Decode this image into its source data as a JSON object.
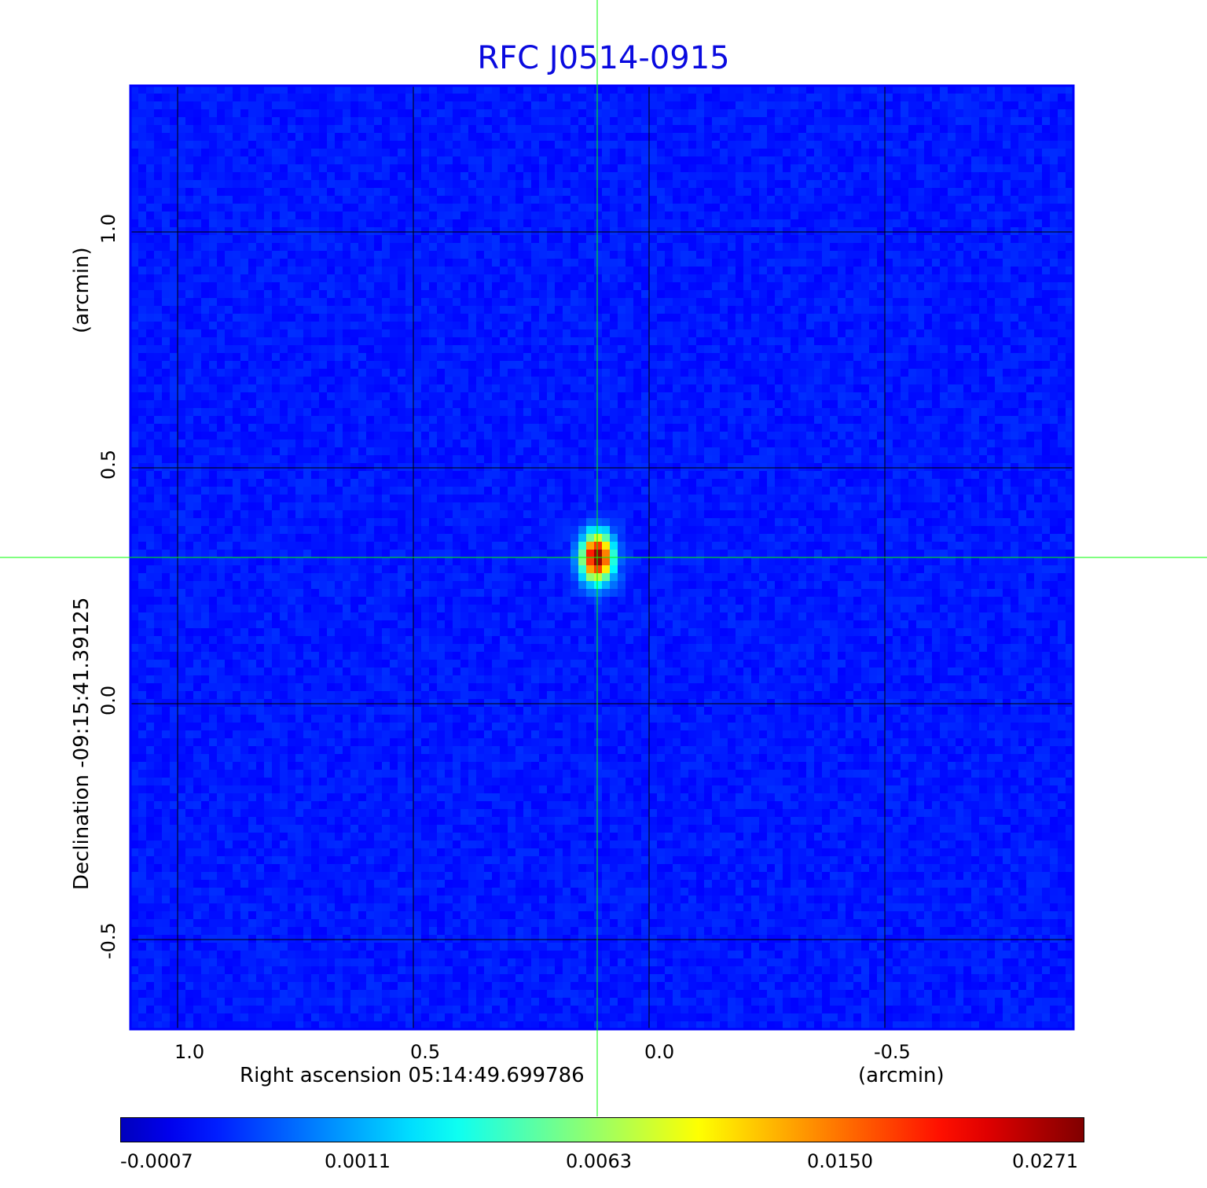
{
  "chart_data": {
    "type": "heatmap",
    "title": "RFC J0514-0915",
    "xlabel": "Right ascension  05:14:49.699786",
    "xunit": "(arcmin)",
    "ylabel": "Declination  -09:15:41.39125",
    "yunit": "(arcmin)",
    "xlim": [
      1.1,
      -0.9
    ],
    "ylim": [
      -0.69,
      1.31
    ],
    "x_ticks": [
      "1.0",
      "0.5",
      "0.0",
      "-0.5"
    ],
    "y_ticks": [
      "1.0",
      "0.5",
      "0.0",
      "-0.5"
    ],
    "grid": true,
    "source_peak": {
      "x": 0.11,
      "y": 0.31,
      "value": 0.0271
    },
    "crosshair": {
      "x": 0.11,
      "y": 0.31
    },
    "background_level": 0.0002,
    "colormap": "jet",
    "colorbar": {
      "ticks": [
        "-0.0007",
        "0.0011",
        "0.0063",
        "0.0150",
        "0.0271"
      ],
      "min": -0.0007,
      "max": 0.0271
    },
    "colors": {
      "title": "#0a0adf",
      "crosshair": "#00ff00",
      "frame": "#0000ff",
      "grid": "#000000"
    }
  }
}
